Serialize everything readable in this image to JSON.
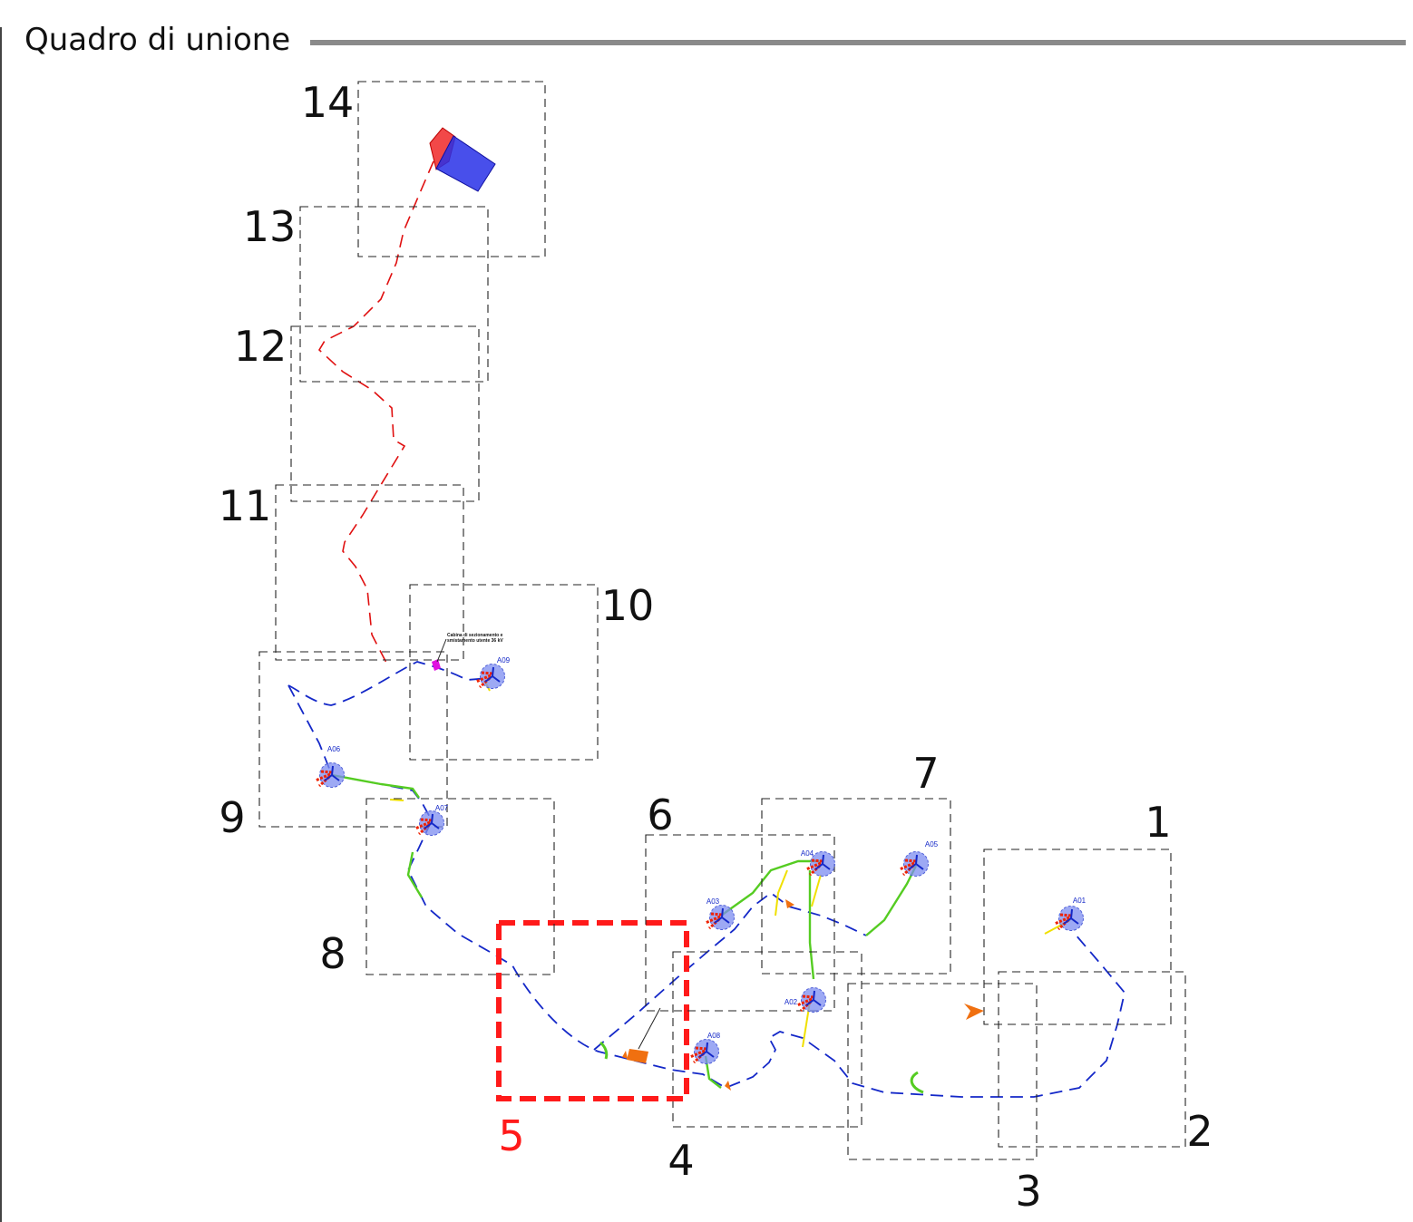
{
  "title": "Quadro di unione",
  "colors": {
    "sheet_frame": "#222222",
    "highlight_frame": "#ff1a1a",
    "highlight_label": "#ff1a1a",
    "cable_route_blue": "#1428c8",
    "cable_route_red": "#e01010",
    "road_yellow": "#f0e000",
    "road_green": "#55cc22",
    "turbine_fill": "#7c8cf0",
    "crane_red": "#ee2200",
    "substation_red": "#f02828",
    "substation_blue": "#2830e8",
    "cabin_magenta": "#e010e0",
    "orange_marker": "#f07010"
  },
  "sheets": [
    {
      "label": "1"
    },
    {
      "label": "2"
    },
    {
      "label": "3"
    },
    {
      "label": "4"
    },
    {
      "label": "5",
      "highlighted": true
    },
    {
      "label": "6"
    },
    {
      "label": "7"
    },
    {
      "label": "8"
    },
    {
      "label": "9"
    },
    {
      "label": "10"
    },
    {
      "label": "11"
    },
    {
      "label": "12"
    },
    {
      "label": "13"
    },
    {
      "label": "14"
    }
  ],
  "turbines": [
    {
      "label": "A01"
    },
    {
      "label": "A02"
    },
    {
      "label": "A03"
    },
    {
      "label": "A04"
    },
    {
      "label": "A05"
    },
    {
      "label": "A06"
    },
    {
      "label": "A07"
    },
    {
      "label": "A08"
    },
    {
      "label": "A09"
    }
  ],
  "cabin_annotation": {
    "line1": "Cabina di sezionamento e",
    "line2": "smistamento utente 36 kV"
  }
}
